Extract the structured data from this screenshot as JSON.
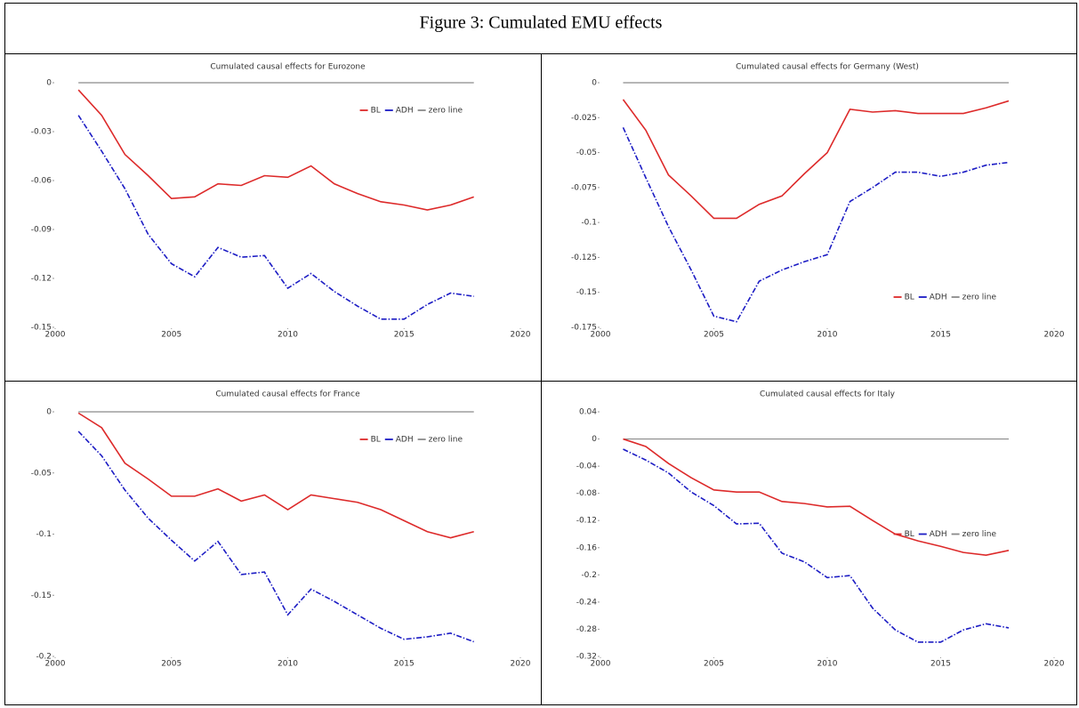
{
  "title": "Figure 3: Cumulated EMU effects",
  "chart_data": [
    {
      "type": "line",
      "title": "Cumulated causal effects for Eurozone",
      "x": [
        2001,
        2002,
        2003,
        2004,
        2005,
        2006,
        2007,
        2008,
        2009,
        2010,
        2011,
        2012,
        2013,
        2014,
        2015,
        2016,
        2017,
        2018
      ],
      "xlim": [
        2000,
        2020
      ],
      "xticks": [
        2000,
        2005,
        2010,
        2015,
        2020
      ],
      "ylim": [
        -0.15,
        0
      ],
      "yticks": [
        0,
        -0.03,
        -0.06,
        -0.09,
        -0.12,
        -0.15
      ],
      "legend": "upper right",
      "series": [
        {
          "name": "BL",
          "color": "#dd2a2a",
          "dash": "solid",
          "values": [
            -0.0044,
            -0.02,
            -0.044,
            -0.057,
            -0.071,
            -0.07,
            -0.062,
            -0.063,
            -0.057,
            -0.058,
            -0.051,
            -0.062,
            -0.068,
            -0.073,
            -0.075,
            -0.078,
            -0.075,
            -0.07
          ]
        },
        {
          "name": "ADH",
          "color": "#1c1cc4",
          "dash": "dashdot",
          "values": [
            -0.02,
            -0.042,
            -0.065,
            -0.093,
            -0.111,
            -0.119,
            -0.101,
            -0.107,
            -0.106,
            -0.126,
            -0.117,
            -0.128,
            -0.137,
            -0.145,
            -0.145,
            -0.136,
            -0.129,
            -0.131
          ]
        },
        {
          "name": "zero line",
          "color": "#8a8a8a",
          "dash": "solid",
          "values": [
            0,
            0,
            0,
            0,
            0,
            0,
            0,
            0,
            0,
            0,
            0,
            0,
            0,
            0,
            0,
            0,
            0,
            0
          ]
        }
      ]
    },
    {
      "type": "line",
      "title": "Cumulated causal effects for Germany (West)",
      "x": [
        2001,
        2002,
        2003,
        2004,
        2005,
        2006,
        2007,
        2008,
        2009,
        2010,
        2011,
        2012,
        2013,
        2014,
        2015,
        2016,
        2017,
        2018
      ],
      "xlim": [
        2000,
        2020
      ],
      "xticks": [
        2000,
        2005,
        2010,
        2015,
        2020
      ],
      "ylim": [
        -0.175,
        0
      ],
      "yticks": [
        0,
        -0.025,
        -0.05,
        -0.075,
        -0.1,
        -0.125,
        -0.15,
        -0.175
      ],
      "legend": "lower right",
      "series": [
        {
          "name": "BL",
          "color": "#dd2a2a",
          "dash": "solid",
          "values": [
            -0.012,
            -0.034,
            -0.066,
            -0.081,
            -0.097,
            -0.097,
            -0.087,
            -0.081,
            -0.065,
            -0.05,
            -0.019,
            -0.021,
            -0.02,
            -0.022,
            -0.022,
            -0.022,
            -0.018,
            -0.013
          ]
        },
        {
          "name": "ADH",
          "color": "#1c1cc4",
          "dash": "dashdot",
          "values": [
            -0.032,
            -0.068,
            -0.103,
            -0.134,
            -0.167,
            -0.171,
            -0.142,
            -0.134,
            -0.128,
            -0.123,
            -0.085,
            -0.075,
            -0.064,
            -0.064,
            -0.067,
            -0.064,
            -0.059,
            -0.057
          ]
        },
        {
          "name": "zero line",
          "color": "#8a8a8a",
          "dash": "solid",
          "values": [
            0,
            0,
            0,
            0,
            0,
            0,
            0,
            0,
            0,
            0,
            0,
            0,
            0,
            0,
            0,
            0,
            0,
            0
          ]
        }
      ]
    },
    {
      "type": "line",
      "title": "Cumulated causal effects for France",
      "x": [
        2001,
        2002,
        2003,
        2004,
        2005,
        2006,
        2007,
        2008,
        2009,
        2010,
        2011,
        2012,
        2013,
        2014,
        2015,
        2016,
        2017,
        2018
      ],
      "xlim": [
        2000,
        2020
      ],
      "xticks": [
        2000,
        2005,
        2010,
        2015,
        2020
      ],
      "ylim": [
        -0.2,
        0
      ],
      "yticks": [
        0,
        -0.05,
        -0.1,
        -0.15,
        -0.2
      ],
      "legend": "upper right",
      "series": [
        {
          "name": "BL",
          "color": "#dd2a2a",
          "dash": "solid",
          "values": [
            -0.001,
            -0.013,
            -0.042,
            -0.055,
            -0.069,
            -0.069,
            -0.063,
            -0.073,
            -0.068,
            -0.08,
            -0.068,
            -0.071,
            -0.074,
            -0.08,
            -0.089,
            -0.098,
            -0.103,
            -0.098
          ]
        },
        {
          "name": "ADH",
          "color": "#1c1cc4",
          "dash": "dashdot",
          "values": [
            -0.016,
            -0.036,
            -0.064,
            -0.087,
            -0.105,
            -0.122,
            -0.106,
            -0.133,
            -0.131,
            -0.166,
            -0.145,
            -0.155,
            -0.166,
            -0.177,
            -0.186,
            -0.184,
            -0.181,
            -0.188
          ]
        },
        {
          "name": "zero line",
          "color": "#8a8a8a",
          "dash": "solid",
          "values": [
            0,
            0,
            0,
            0,
            0,
            0,
            0,
            0,
            0,
            0,
            0,
            0,
            0,
            0,
            0,
            0,
            0,
            0
          ]
        }
      ]
    },
    {
      "type": "line",
      "title": "Cumulated causal effects for Italy",
      "x": [
        2001,
        2002,
        2003,
        2004,
        2005,
        2006,
        2007,
        2008,
        2009,
        2010,
        2011,
        2012,
        2013,
        2014,
        2015,
        2016,
        2017,
        2018
      ],
      "xlim": [
        2000,
        2020
      ],
      "xticks": [
        2000,
        2005,
        2010,
        2015,
        2020
      ],
      "ylim": [
        -0.32,
        0.04
      ],
      "yticks": [
        0.04,
        0,
        -0.04,
        -0.08,
        -0.12,
        -0.16,
        -0.2,
        -0.24,
        -0.28,
        -0.32
      ],
      "legend": "center right",
      "series": [
        {
          "name": "BL",
          "color": "#dd2a2a",
          "dash": "solid",
          "values": [
            0,
            -0.011,
            -0.036,
            -0.057,
            -0.075,
            -0.078,
            -0.078,
            -0.092,
            -0.095,
            -0.1,
            -0.099,
            -0.12,
            -0.14,
            -0.15,
            -0.158,
            -0.167,
            -0.171,
            -0.164
          ]
        },
        {
          "name": "ADH",
          "color": "#1c1cc4",
          "dash": "dashdot",
          "values": [
            -0.015,
            -0.031,
            -0.05,
            -0.078,
            -0.098,
            -0.125,
            -0.124,
            -0.168,
            -0.181,
            -0.204,
            -0.201,
            -0.249,
            -0.281,
            -0.299,
            -0.299,
            -0.281,
            -0.272,
            -0.278
          ]
        },
        {
          "name": "zero line",
          "color": "#8a8a8a",
          "dash": "solid",
          "values": [
            0,
            0,
            0,
            0,
            0,
            0,
            0,
            0,
            0,
            0,
            0,
            0,
            0,
            0,
            0,
            0,
            0,
            0
          ]
        }
      ]
    }
  ]
}
